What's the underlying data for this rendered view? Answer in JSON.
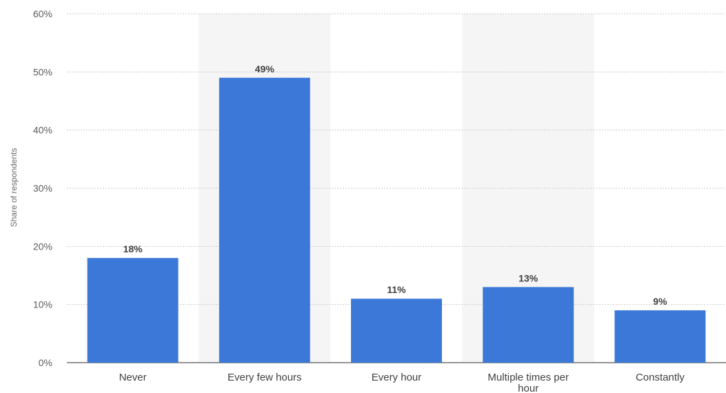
{
  "chart_data": {
    "type": "bar",
    "title": "",
    "xlabel": "",
    "ylabel": "Share of respondents",
    "categories": [
      "Never",
      "Every few hours",
      "Every hour",
      "Multiple times per hour",
      "Constantly"
    ],
    "values": [
      18,
      49,
      11,
      13,
      9
    ],
    "value_labels": [
      "18%",
      "49%",
      "11%",
      "13%",
      "9%"
    ],
    "ylim": [
      0,
      60
    ],
    "yticks": [
      0,
      10,
      20,
      30,
      40,
      50,
      60
    ],
    "ytick_labels": [
      "0%",
      "10%",
      "20%",
      "30%",
      "40%",
      "50%",
      "60%"
    ],
    "grid": true,
    "legend": "none",
    "colors": {
      "bar": "#3c78d8",
      "alt_band": "#f5f5f5",
      "grid": "#c9c9c9",
      "axis": "#555555"
    }
  }
}
